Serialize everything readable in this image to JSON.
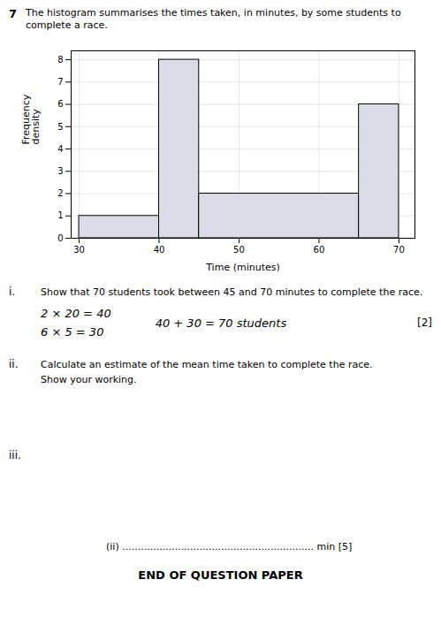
{
  "chart_data": {
    "type": "histogram",
    "title": "The histogram summarises the times taken, in minutes, by some students to complete a race.",
    "x_label": "Time (minutes)",
    "y_label": "Frequency\ndensity",
    "bins": [
      30,
      40,
      45,
      65,
      70
    ],
    "values": [
      1,
      8,
      2,
      6
    ],
    "color": "#dcdce8",
    "xlim": [
      29,
      72
    ],
    "xticks": [
      30,
      40,
      50,
      60,
      70
    ],
    "ylim": [
      0,
      8.4
    ],
    "yticks": [
      0,
      1,
      2,
      3,
      4,
      5,
      6,
      7,
      8
    ],
    "grid": true,
    "annotations": [
      "7",
      "i.",
      "Show that 70 students took between 45 and 70 minutes to complete the race.",
      "2 × 20 = 40",
      "6 × 5 = 30",
      "40 + 30 = 70 students",
      "[2]",
      "ii.",
      "Calculate an estimate of the mean time taken to complete the race.\nShow your working.",
      "iii.",
      "(ii) .............................................................. min [5]",
      "END OF QUESTION PAPER"
    ]
  }
}
